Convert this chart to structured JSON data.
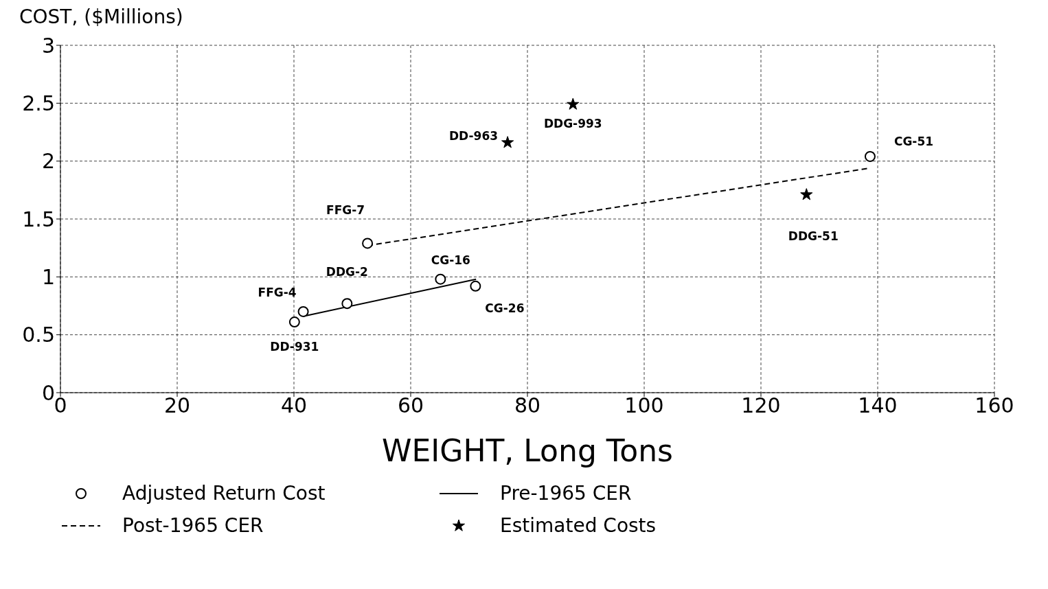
{
  "chart_data": {
    "type": "scatter",
    "ylabel": "COST, ($Millions)",
    "xlabel": "WEIGHT, Long Tons",
    "xlim": [
      0,
      160
    ],
    "xticks": [
      0,
      20,
      40,
      60,
      80,
      100,
      120,
      140,
      160
    ],
    "ylim": [
      0,
      3
    ],
    "yticks": [
      0,
      0.5,
      1,
      1.5,
      2,
      2.5,
      3
    ],
    "grid": true,
    "legend": "bottom",
    "series": [
      {
        "name": "Adjusted Return Cost",
        "marker": "circle",
        "color": "#000000",
        "x": [
          40.1,
          41.6,
          49.1,
          65.1,
          71.1,
          52.6,
          138.7
        ],
        "values": [
          0.61,
          0.7,
          0.77,
          0.98,
          0.92,
          1.29,
          2.04
        ]
      },
      {
        "name": "Pre-1965 CER",
        "type": "line",
        "line_style": "solid",
        "marker": "none",
        "color": "#000000",
        "x": [
          41.6,
          71.2
        ],
        "values": [
          0.66,
          0.98
        ]
      },
      {
        "name": "Post-1965 CER",
        "type": "line",
        "line_style": "dashed",
        "marker": "none",
        "color": "#000000",
        "x": [
          52.6,
          138.7
        ],
        "values": [
          1.27,
          1.94
        ]
      },
      {
        "name": "Estimated Costs",
        "marker": "star",
        "color": "#000000",
        "x": [
          76.6,
          87.8,
          127.8
        ],
        "values": [
          2.16,
          2.49,
          1.71
        ]
      }
    ],
    "annotations": [
      {
        "text": "DD-931",
        "x": 40.1,
        "y": 0.61
      },
      {
        "text": "FFG-4",
        "x": 41.6,
        "y": 0.7
      },
      {
        "text": "DDG-2",
        "x": 49.1,
        "y": 0.77
      },
      {
        "text": "CG-16",
        "x": 65.1,
        "y": 0.98
      },
      {
        "text": "CG-26",
        "x": 71.1,
        "y": 0.92
      },
      {
        "text": "FFG-7",
        "x": 52.6,
        "y": 1.29
      },
      {
        "text": "CG-51",
        "x": 138.7,
        "y": 2.04
      },
      {
        "text": "DD-963",
        "x": 76.6,
        "y": 2.16
      },
      {
        "text": "DDG-993",
        "x": 87.8,
        "y": 2.49
      },
      {
        "text": "DDG-51",
        "x": 127.8,
        "y": 1.71
      }
    ]
  }
}
